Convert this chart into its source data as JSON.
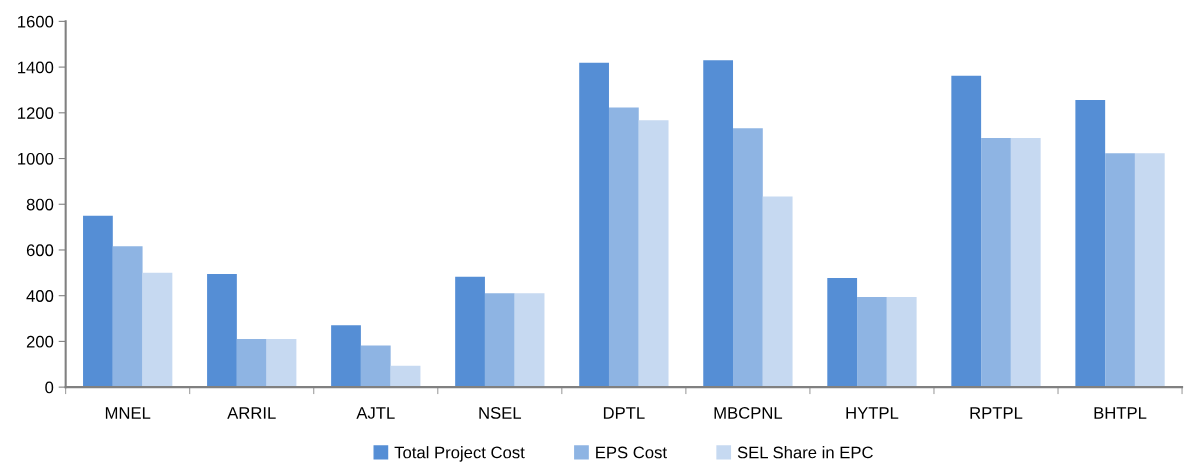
{
  "chart_data": {
    "type": "bar",
    "categories": [
      "MNEL",
      "ARRIL",
      "AJTL",
      "NSEL",
      "DPTL",
      "MBCPNL",
      "HYTPL",
      "RPTPL",
      "BHTPL"
    ],
    "series": [
      {
        "name": "Total Project Cost",
        "color": "#558ed5",
        "values": [
          750,
          495,
          271,
          483,
          1419,
          1430,
          477,
          1362,
          1256
        ]
      },
      {
        "name": "EPS Cost",
        "color": "#8eb4e3",
        "values": [
          616,
          210,
          182,
          411,
          1223,
          1133,
          394,
          1090,
          1023
        ]
      },
      {
        "name": "SEL Share in EPC",
        "color": "#c6d9f1",
        "values": [
          500,
          210,
          93,
          411,
          1168,
          834,
          394,
          1090,
          1023
        ]
      }
    ],
    "ylim": [
      0,
      1600
    ],
    "yticks": [
      0,
      200,
      400,
      600,
      800,
      1000,
      1200,
      1400,
      1600
    ],
    "grid": false,
    "legend": "bottom"
  }
}
